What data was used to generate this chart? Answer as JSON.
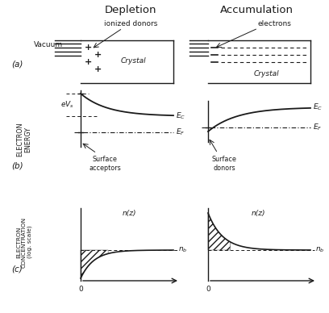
{
  "title_depletion": "Depletion",
  "title_accumulation": "Accumulation",
  "label_vacuum": "Vacuum",
  "label_crystal": "Crystal",
  "label_ionized_donors": "ionized donors",
  "label_electrons": "electrons",
  "label_a": "(a)",
  "label_b": "(b)",
  "label_c": "(c)",
  "label_surface_acceptors": "Surface\nacceptors",
  "label_surface_donors": "Surface\ndonors",
  "label_nz": "n(z)",
  "label_nb": "n_b",
  "label_electron_energy": "ELECTRON\nENERGY",
  "label_electron_concentration": "ELECTRON\nCONCENTRATION\n(log. scale)",
  "bg_color": "#ffffff",
  "line_color": "#1a1a1a"
}
